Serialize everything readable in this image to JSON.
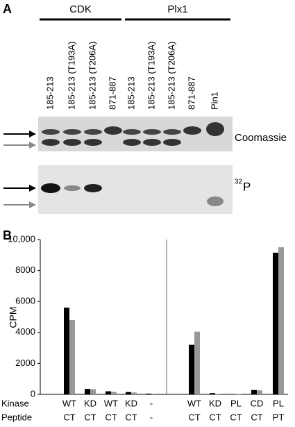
{
  "panel_a": {
    "label": "A",
    "groups": [
      {
        "name": "CDK",
        "lanes": [
          "185-213",
          "185-213 (T193A)",
          "185-213 (T206A)",
          "871-887"
        ]
      },
      {
        "name": "Plx1",
        "lanes": [
          "185-213",
          "185-213 (T193A)",
          "185-213 (T206A)",
          "871-887"
        ]
      }
    ],
    "extra_lane": "Pin1",
    "stain_label": "Coomassie",
    "radio_label": {
      "superscript": "32",
      "text": "P"
    }
  },
  "chart_data": {
    "type": "bar",
    "panel_label": "B",
    "y_label": "CPM",
    "category_rows": [
      {
        "label": "Kinase",
        "values": [
          "WT",
          "KD",
          "WT",
          "KD",
          "-",
          "WT",
          "KD",
          "PL",
          "CD",
          "PL"
        ]
      },
      {
        "label": "Peptide",
        "values": [
          "CT",
          "CT",
          "CT",
          "CT",
          "-",
          "CT",
          "CT",
          "CT",
          "CT",
          "PT"
        ]
      }
    ],
    "series": [
      {
        "color": "#000000",
        "values": [
          5600,
          350,
          200,
          150,
          50,
          3200,
          80,
          20,
          280,
          9150
        ]
      },
      {
        "color": "#999999",
        "values": [
          4800,
          330,
          160,
          120,
          40,
          4050,
          30,
          20,
          260,
          9500
        ]
      }
    ],
    "ylim": [
      0,
      10000
    ],
    "yticks": [
      0,
      2000,
      4000,
      6000,
      8000,
      {
        "value": 10000,
        "label": "10,000"
      }
    ]
  }
}
